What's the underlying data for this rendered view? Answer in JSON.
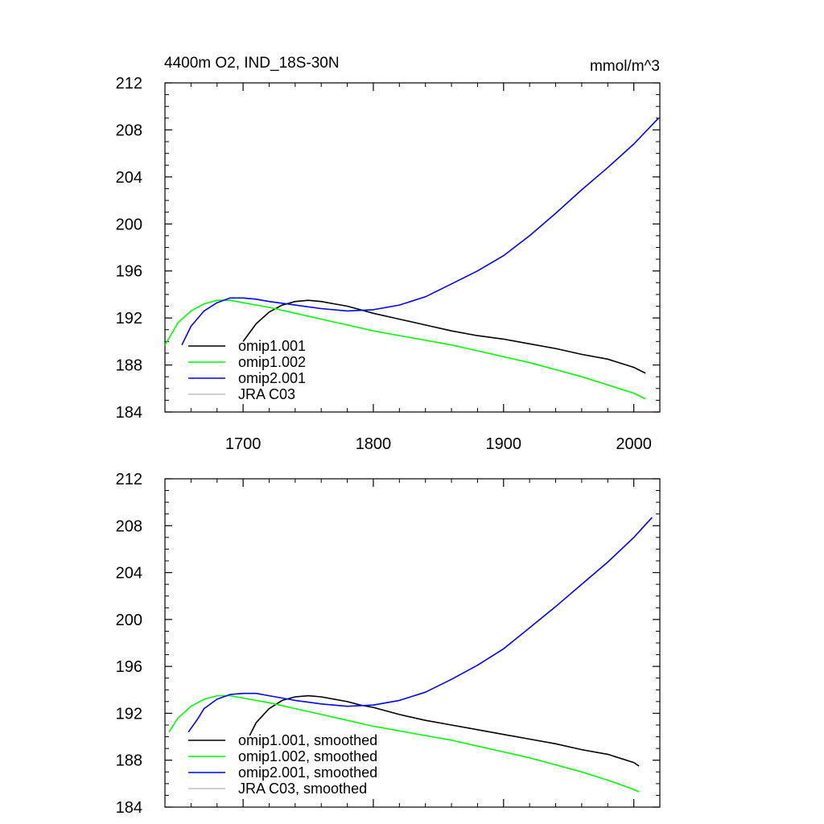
{
  "figure": {
    "title_left": "4400m O2, IND_18S-30N",
    "title_right": "mmol/m^3"
  },
  "chart_data": [
    {
      "type": "line",
      "title": "4400m O2, IND_18S-30N",
      "units": "mmol/m^3",
      "xlim": [
        1640,
        2020
      ],
      "ylim": [
        184,
        212
      ],
      "xticks": [
        1700,
        1800,
        1900,
        2000
      ],
      "yticks": [
        184,
        188,
        192,
        196,
        200,
        204,
        208,
        212
      ],
      "show_x_tick_labels": true,
      "series": [
        {
          "name": "omip1.001",
          "color": "#000000",
          "x": [
            1700,
            1710,
            1720,
            1730,
            1740,
            1750,
            1760,
            1770,
            1780,
            1790,
            1800,
            1820,
            1840,
            1860,
            1880,
            1900,
            1920,
            1940,
            1960,
            1980,
            2000,
            2009
          ],
          "y": [
            190.0,
            191.5,
            192.5,
            193.1,
            193.4,
            193.5,
            193.4,
            193.2,
            193.0,
            192.7,
            192.4,
            191.9,
            191.4,
            190.9,
            190.5,
            190.2,
            189.8,
            189.4,
            188.9,
            188.5,
            187.8,
            187.3
          ]
        },
        {
          "name": "omip1.002",
          "color": "#00ff00",
          "x": [
            1640,
            1650,
            1660,
            1670,
            1680,
            1690,
            1700,
            1720,
            1740,
            1760,
            1780,
            1800,
            1820,
            1840,
            1860,
            1880,
            1900,
            1920,
            1940,
            1960,
            1980,
            2000,
            2009
          ],
          "y": [
            189.7,
            191.6,
            192.6,
            193.2,
            193.5,
            193.5,
            193.3,
            192.9,
            192.4,
            191.9,
            191.4,
            190.9,
            190.5,
            190.1,
            189.7,
            189.2,
            188.7,
            188.2,
            187.6,
            187.0,
            186.3,
            185.6,
            185.1
          ]
        },
        {
          "name": "omip2.001",
          "color": "#0000ff",
          "x": [
            1653,
            1660,
            1670,
            1680,
            1690,
            1700,
            1710,
            1720,
            1740,
            1760,
            1780,
            1800,
            1820,
            1840,
            1860,
            1880,
            1900,
            1920,
            1940,
            1960,
            1980,
            2000,
            2019
          ],
          "y": [
            189.7,
            191.3,
            192.6,
            193.3,
            193.7,
            193.7,
            193.6,
            193.4,
            193.1,
            192.8,
            192.6,
            192.7,
            193.1,
            193.8,
            194.9,
            196.0,
            197.3,
            199.0,
            200.9,
            202.9,
            204.8,
            206.8,
            209.0
          ]
        },
        {
          "name": "JRA C03",
          "color": "#c0c0c0",
          "x": [],
          "y": []
        }
      ]
    },
    {
      "type": "line",
      "xlim": [
        1640,
        2020
      ],
      "ylim": [
        184,
        212
      ],
      "xticks": [
        1700,
        1800,
        1900,
        2000
      ],
      "yticks": [
        184,
        188,
        192,
        196,
        200,
        204,
        208,
        212
      ],
      "show_x_tick_labels": false,
      "series": [
        {
          "name": "omip1.001, smoothed",
          "color": "#000000",
          "x": [
            1705,
            1710,
            1720,
            1730,
            1740,
            1750,
            1760,
            1770,
            1780,
            1790,
            1800,
            1820,
            1840,
            1860,
            1880,
            1900,
            1920,
            1940,
            1960,
            1980,
            2000,
            2004
          ],
          "y": [
            190.1,
            191.2,
            192.4,
            193.1,
            193.4,
            193.5,
            193.4,
            193.2,
            193.0,
            192.7,
            192.5,
            191.9,
            191.4,
            191.0,
            190.6,
            190.2,
            189.8,
            189.4,
            188.9,
            188.5,
            187.8,
            187.5
          ]
        },
        {
          "name": "omip1.002, smoothed",
          "color": "#00ff00",
          "x": [
            1643,
            1650,
            1660,
            1670,
            1680,
            1690,
            1700,
            1720,
            1740,
            1760,
            1780,
            1800,
            1820,
            1840,
            1860,
            1880,
            1900,
            1920,
            1940,
            1960,
            1980,
            2000,
            2004
          ],
          "y": [
            190.4,
            191.6,
            192.6,
            193.2,
            193.5,
            193.5,
            193.3,
            192.9,
            192.4,
            191.9,
            191.4,
            190.9,
            190.5,
            190.1,
            189.7,
            189.2,
            188.7,
            188.2,
            187.6,
            187.0,
            186.3,
            185.5,
            185.3
          ]
        },
        {
          "name": "omip2.001, smoothed",
          "color": "#0000ff",
          "x": [
            1658,
            1665,
            1670,
            1680,
            1690,
            1700,
            1710,
            1720,
            1740,
            1760,
            1780,
            1800,
            1820,
            1840,
            1860,
            1880,
            1900,
            1920,
            1940,
            1960,
            1980,
            2000,
            2014
          ],
          "y": [
            190.4,
            191.5,
            192.4,
            193.2,
            193.6,
            193.7,
            193.7,
            193.5,
            193.1,
            192.8,
            192.6,
            192.7,
            193.1,
            193.8,
            194.9,
            196.1,
            197.5,
            199.3,
            201.1,
            203.0,
            204.9,
            207.0,
            208.7
          ]
        },
        {
          "name": "JRA C03, smoothed",
          "color": "#c0c0c0",
          "x": [],
          "y": []
        }
      ]
    }
  ]
}
